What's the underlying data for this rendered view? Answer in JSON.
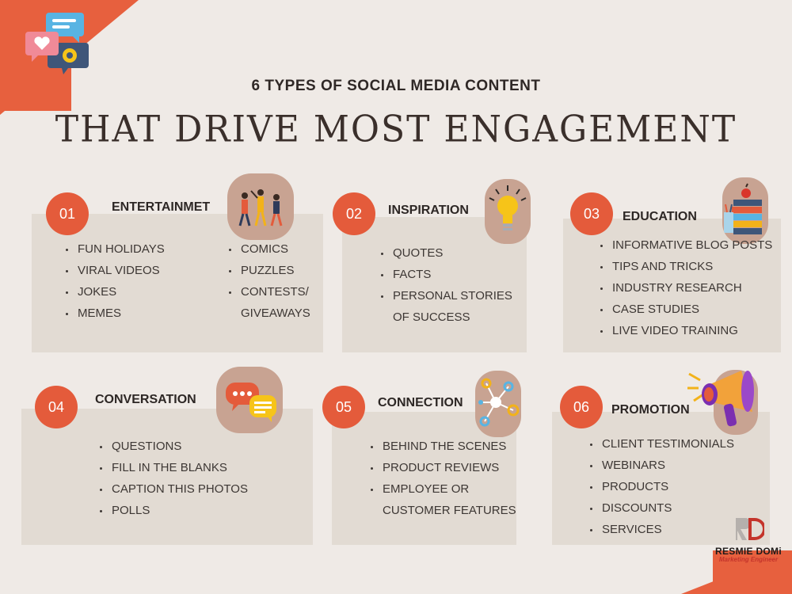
{
  "header": {
    "subtitle": "6 TYPES OF SOCIAL MEDIA CONTENT",
    "title": "THAT DRIVE MOST ENGAGEMENT"
  },
  "cards": [
    {
      "number": "01",
      "title": "ENTERTAINMET",
      "icon": "people-dancing-icon",
      "items": [
        "FUN HOLIDAYS",
        "VIRAL VIDEOS",
        "JOKES",
        "MEMES"
      ],
      "items2": [
        "COMICS",
        "PUZZLES",
        "CONTESTS/",
        "GIVEAWAYS"
      ]
    },
    {
      "number": "02",
      "title": "INSPIRATION",
      "icon": "lightbulb-icon",
      "items": [
        "QUOTES",
        "FACTS",
        "PERSONAL STORIES",
        "OF SUCCESS"
      ]
    },
    {
      "number": "03",
      "title": "EDUCATION",
      "icon": "books-icon",
      "items": [
        "INFORMATIVE BLOG POSTS",
        "TIPS AND TRICKS",
        "INDUSTRY RESEARCH",
        "CASE STUDIES",
        "LIVE VIDEO TRAINING"
      ]
    },
    {
      "number": "04",
      "title": "CONVERSATION",
      "icon": "chat-bubbles-icon",
      "items": [
        "QUESTIONS",
        "FILL IN THE BLANKS",
        "CAPTION THIS PHOTOS",
        "POLLS"
      ]
    },
    {
      "number": "05",
      "title": "CONNECTION",
      "icon": "network-icon",
      "items": [
        "BEHIND THE SCENES",
        "PRODUCT REVIEWS",
        "EMPLOYEE OR",
        "CUSTOMER FEATURES"
      ]
    },
    {
      "number": "06",
      "title": "PROMOTION",
      "icon": "megaphone-icon",
      "items": [
        "CLIENT TESTIMONIALS",
        "WEBINARS",
        "PRODUCTS",
        "DISCOUNTS",
        "SERVICES"
      ]
    }
  ],
  "brand": {
    "name": "RESMIE DOMi",
    "role": "Marketing Engineer"
  },
  "colors": {
    "accent": "#e45b3b",
    "card": "#e2dbd3",
    "pill": "#c8a392",
    "background": "#efeae6"
  }
}
